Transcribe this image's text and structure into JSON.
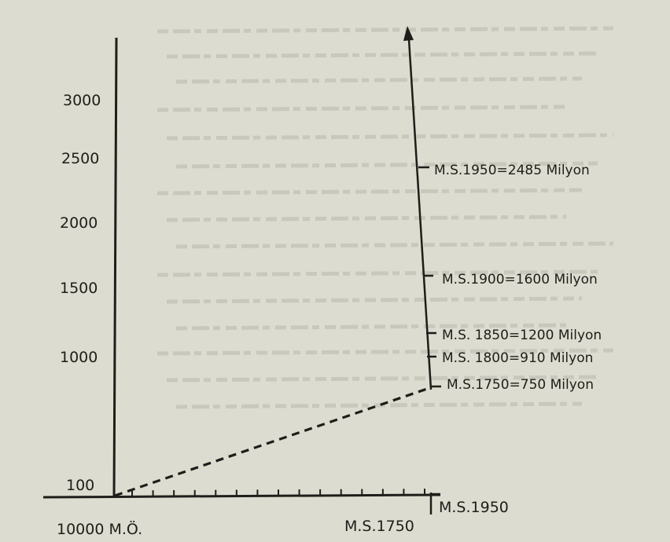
{
  "colors": {
    "paper": "#dcdcd0",
    "ink": "#1e1e1a",
    "bleed": "#b9b9ad"
  },
  "chart_data": {
    "type": "line",
    "title": "",
    "xlabel": "",
    "ylabel": "",
    "y_ticks": [
      "3000",
      "2500",
      "2000",
      "1500",
      "1000",
      "100"
    ],
    "x_start_label": "10000 M.Ö.",
    "x_mid_label": "M.S.1750",
    "x_end_label": "M.S.1950",
    "series": [
      {
        "style": "dashed",
        "points": [
          {
            "x": "10000 M.Ö.",
            "y": 100
          },
          {
            "x": "M.S.1750",
            "y": 750
          }
        ]
      }
    ],
    "annotations": [
      {
        "year": 1950,
        "value": 2485,
        "label": "M.S.1950=2485 Milyon"
      },
      {
        "year": 1900,
        "value": 1600,
        "label": "M.S.1900=1600 Milyon"
      },
      {
        "year": 1850,
        "value": 1200,
        "label": "M.S. 1850=1200 Milyon"
      },
      {
        "year": 1800,
        "value": 910,
        "label": "M.S. 1800=910 Milyon"
      },
      {
        "year": 1750,
        "value": 750,
        "label": "M.S.1750=750 Milyon"
      }
    ]
  }
}
